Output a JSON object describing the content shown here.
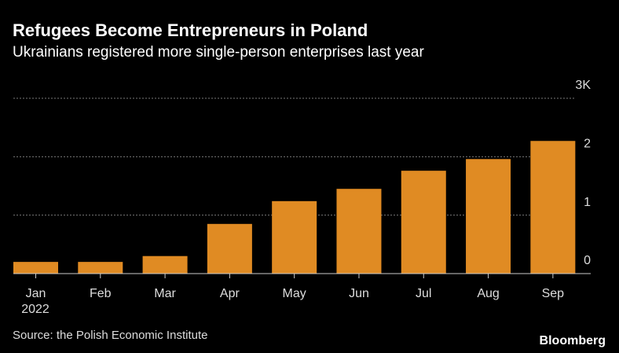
{
  "chart_data": {
    "type": "bar",
    "title": "Refugees Become Entrepreneurs in Poland",
    "subtitle": "Ukrainians registered more single-person enterprises last year",
    "categories": [
      "Jan",
      "Feb",
      "Mar",
      "Apr",
      "May",
      "Jun",
      "Jul",
      "Aug",
      "Sep"
    ],
    "year_label": "2022",
    "values": [
      0.2,
      0.2,
      0.3,
      0.85,
      1.24,
      1.45,
      1.76,
      1.96,
      2.27
    ],
    "color": "#e08b23",
    "ylim": [
      0,
      3
    ],
    "yticks": [
      0,
      1,
      2,
      {
        "value": 3,
        "label": "3K"
      }
    ],
    "grid": true,
    "source": "Source: the Polish Economic Institute",
    "brand": "Bloomberg"
  }
}
